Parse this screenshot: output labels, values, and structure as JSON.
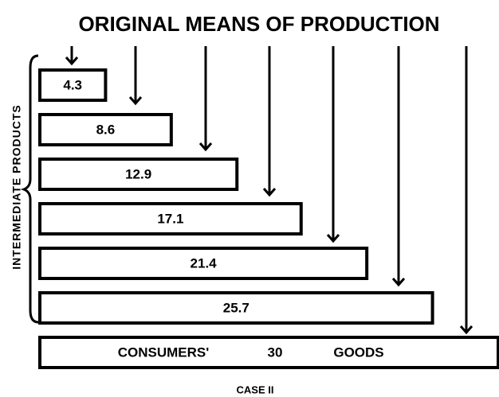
{
  "chart_data": {
    "type": "bar",
    "orientation": "horizontal",
    "title": "ORIGINAL MEANS OF PRODUCTION",
    "y_label": "INTERMEDIATE PRODUCTS",
    "values": [
      4.3,
      8.6,
      12.9,
      17.1,
      21.4,
      25.7,
      30
    ],
    "annotations": [
      "CONSUMERS'",
      "GOODS"
    ],
    "caption": "CASE II",
    "color": "#ffffff"
  }
}
